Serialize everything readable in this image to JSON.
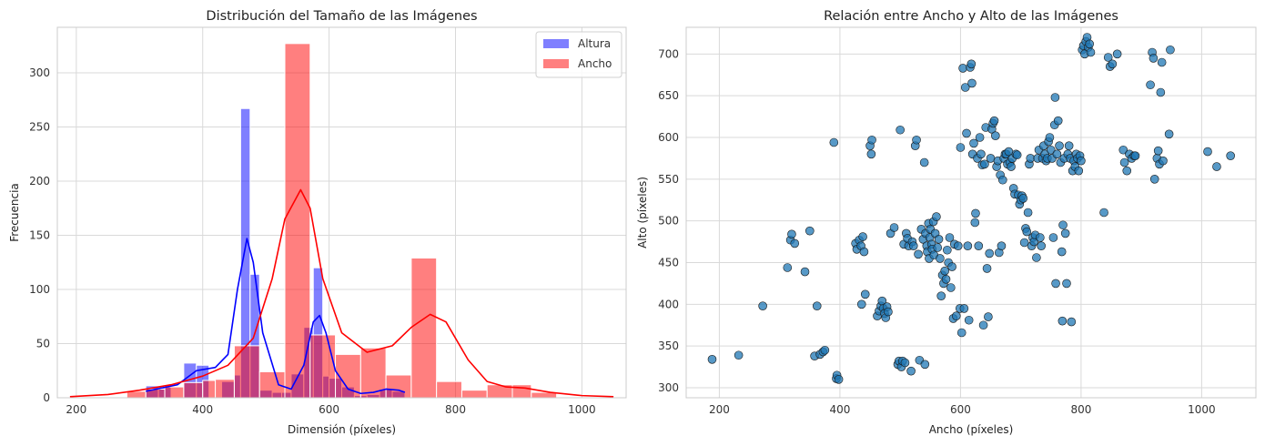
{
  "chart_data": [
    {
      "type": "histogram",
      "title": "Distribución del Tamaño de las Imágenes",
      "xlabel": "Dimensión (píxeles)",
      "ylabel": "Frecuencia",
      "xlim": [
        170,
        1070
      ],
      "ylim": [
        0,
        342
      ],
      "xticks": [
        200,
        400,
        600,
        800,
        1000
      ],
      "yticks": [
        0,
        50,
        100,
        150,
        200,
        250,
        300
      ],
      "grid": true,
      "legend_position": "top-right",
      "series": [
        {
          "name": "Altura",
          "color": "#0000ff",
          "bar_alpha": 0.5,
          "bins": [
            [
              310,
              330,
              11
            ],
            [
              330,
              350,
              10
            ],
            [
              350,
              370,
              0
            ],
            [
              370,
              390,
              32
            ],
            [
              390,
              410,
              30
            ],
            [
              410,
              430,
              0
            ],
            [
              430,
              450,
              15
            ],
            [
              450,
              460,
              21
            ],
            [
              460,
              475,
              267
            ],
            [
              475,
              490,
              114
            ],
            [
              490,
              510,
              7
            ],
            [
              510,
              525,
              5
            ],
            [
              525,
              540,
              5
            ],
            [
              540,
              560,
              22
            ],
            [
              560,
              575,
              65
            ],
            [
              575,
              590,
              120
            ],
            [
              590,
              600,
              20
            ],
            [
              600,
              620,
              18
            ],
            [
              620,
              640,
              10
            ],
            [
              640,
              660,
              2
            ],
            [
              660,
              680,
              3
            ],
            [
              680,
              700,
              8
            ],
            [
              700,
              720,
              6
            ]
          ],
          "kde": [
            [
              310,
              6
            ],
            [
              360,
              12
            ],
            [
              390,
              25
            ],
            [
              420,
              28
            ],
            [
              440,
              40
            ],
            [
              455,
              100
            ],
            [
              470,
              147
            ],
            [
              480,
              125
            ],
            [
              495,
              60
            ],
            [
              520,
              12
            ],
            [
              540,
              8
            ],
            [
              560,
              30
            ],
            [
              575,
              70
            ],
            [
              585,
              76
            ],
            [
              595,
              60
            ],
            [
              610,
              25
            ],
            [
              630,
              8
            ],
            [
              650,
              4
            ],
            [
              670,
              5
            ],
            [
              690,
              8
            ],
            [
              710,
              7
            ],
            [
              720,
              5
            ]
          ]
        },
        {
          "name": "Ancho",
          "color": "#ff0000",
          "bar_alpha": 0.5,
          "bins": [
            [
              280,
              310,
              6
            ],
            [
              310,
              340,
              8
            ],
            [
              340,
              370,
              10
            ],
            [
              370,
              400,
              14
            ],
            [
              400,
              420,
              16
            ],
            [
              420,
              450,
              17
            ],
            [
              450,
              490,
              48
            ],
            [
              490,
              530,
              24
            ],
            [
              530,
              570,
              327
            ],
            [
              570,
              610,
              58
            ],
            [
              610,
              650,
              40
            ],
            [
              650,
              690,
              46
            ],
            [
              690,
              730,
              21
            ],
            [
              730,
              770,
              129
            ],
            [
              770,
              810,
              15
            ],
            [
              810,
              850,
              7
            ],
            [
              850,
              890,
              12
            ],
            [
              890,
              920,
              12
            ],
            [
              920,
              960,
              5
            ]
          ],
          "kde": [
            [
              190,
              1
            ],
            [
              250,
              3
            ],
            [
              300,
              7
            ],
            [
              350,
              12
            ],
            [
              400,
              20
            ],
            [
              440,
              30
            ],
            [
              480,
              55
            ],
            [
              510,
              110
            ],
            [
              530,
              165
            ],
            [
              555,
              192
            ],
            [
              570,
              175
            ],
            [
              590,
              110
            ],
            [
              620,
              60
            ],
            [
              660,
              42
            ],
            [
              700,
              48
            ],
            [
              730,
              65
            ],
            [
              760,
              77
            ],
            [
              785,
              70
            ],
            [
              820,
              35
            ],
            [
              850,
              15
            ],
            [
              880,
              10
            ],
            [
              910,
              9
            ],
            [
              950,
              5
            ],
            [
              1000,
              2
            ],
            [
              1050,
              1
            ]
          ]
        }
      ]
    },
    {
      "type": "scatter",
      "title": "Relación entre Ancho y Alto de las Imágenes",
      "xlabel": "Ancho (píxeles)",
      "ylabel": "Alto (píxeles)",
      "xlim": [
        145,
        1090
      ],
      "ylim": [
        288,
        732
      ],
      "xticks": [
        200,
        400,
        600,
        800,
        1000
      ],
      "yticks": [
        300,
        350,
        400,
        450,
        500,
        550,
        600,
        650,
        700
      ],
      "grid": true,
      "color": "#1f77b4",
      "points": [
        [
          188,
          334
        ],
        [
          232,
          339
        ],
        [
          272,
          398
        ],
        [
          313,
          444
        ],
        [
          318,
          477
        ],
        [
          320,
          484
        ],
        [
          325,
          473
        ],
        [
          342,
          439
        ],
        [
          350,
          488
        ],
        [
          358,
          338
        ],
        [
          362,
          398
        ],
        [
          367,
          340
        ],
        [
          372,
          343
        ],
        [
          375,
          345
        ],
        [
          390,
          594
        ],
        [
          394,
          311
        ],
        [
          395,
          315
        ],
        [
          398,
          310
        ],
        [
          426,
          473
        ],
        [
          428,
          466
        ],
        [
          432,
          477
        ],
        [
          435,
          470
        ],
        [
          436,
          400
        ],
        [
          438,
          481
        ],
        [
          440,
          463
        ],
        [
          442,
          412
        ],
        [
          450,
          590
        ],
        [
          452,
          580
        ],
        [
          453,
          597
        ],
        [
          462,
          386
        ],
        [
          465,
          392
        ],
        [
          468,
          398
        ],
        [
          470,
          404
        ],
        [
          472,
          395
        ],
        [
          474,
          389
        ],
        [
          476,
          384
        ],
        [
          478,
          397
        ],
        [
          480,
          391
        ],
        [
          484,
          485
        ],
        [
          490,
          492
        ],
        [
          496,
          328
        ],
        [
          498,
          332
        ],
        [
          500,
          609
        ],
        [
          502,
          325
        ],
        [
          504,
          332
        ],
        [
          506,
          472
        ],
        [
          508,
          330
        ],
        [
          510,
          485
        ],
        [
          512,
          479
        ],
        [
          514,
          470
        ],
        [
          518,
          320
        ],
        [
          520,
          475
        ],
        [
          522,
          470
        ],
        [
          525,
          590
        ],
        [
          527,
          597
        ],
        [
          530,
          460
        ],
        [
          532,
          333
        ],
        [
          535,
          490
        ],
        [
          538,
          478
        ],
        [
          540,
          570
        ],
        [
          541,
          328
        ],
        [
          542,
          485
        ],
        [
          544,
          470
        ],
        [
          545,
          463
        ],
        [
          547,
          497
        ],
        [
          548,
          455
        ],
        [
          549,
          480
        ],
        [
          550,
          490
        ],
        [
          552,
          472
        ],
        [
          553,
          466
        ],
        [
          555,
          499
        ],
        [
          556,
          459
        ],
        [
          558,
          485
        ],
        [
          560,
          505
        ],
        [
          562,
          468
        ],
        [
          564,
          478
        ],
        [
          566,
          455
        ],
        [
          568,
          410
        ],
        [
          570,
          435
        ],
        [
          572,
          425
        ],
        [
          574,
          440
        ],
        [
          576,
          430
        ],
        [
          578,
          465
        ],
        [
          580,
          450
        ],
        [
          582,
          480
        ],
        [
          584,
          420
        ],
        [
          586,
          445
        ],
        [
          588,
          383
        ],
        [
          590,
          472
        ],
        [
          593,
          386
        ],
        [
          596,
          470
        ],
        [
          599,
          395
        ],
        [
          600,
          588
        ],
        [
          602,
          366
        ],
        [
          604,
          683
        ],
        [
          606,
          395
        ],
        [
          608,
          660
        ],
        [
          610,
          605
        ],
        [
          612,
          470
        ],
        [
          614,
          381
        ],
        [
          616,
          684
        ],
        [
          618,
          688
        ],
        [
          619,
          665
        ],
        [
          620,
          580
        ],
        [
          622,
          593
        ],
        [
          624,
          498
        ],
        [
          625,
          509
        ],
        [
          628,
          575
        ],
        [
          630,
          470
        ],
        [
          632,
          600
        ],
        [
          634,
          580
        ],
        [
          636,
          567
        ],
        [
          638,
          375
        ],
        [
          640,
          568
        ],
        [
          642,
          612
        ],
        [
          644,
          443
        ],
        [
          646,
          385
        ],
        [
          648,
          461
        ],
        [
          650,
          575
        ],
        [
          652,
          610
        ],
        [
          654,
          617
        ],
        [
          656,
          620
        ],
        [
          658,
          602
        ],
        [
          660,
          565
        ],
        [
          662,
          572
        ],
        [
          664,
          462
        ],
        [
          666,
          555
        ],
        [
          668,
          470
        ],
        [
          670,
          549
        ],
        [
          672,
          575
        ],
        [
          674,
          580
        ],
        [
          676,
          580
        ],
        [
          678,
          568
        ],
        [
          680,
          583
        ],
        [
          682,
          570
        ],
        [
          684,
          565
        ],
        [
          686,
          575
        ],
        [
          688,
          539
        ],
        [
          690,
          532
        ],
        [
          692,
          580
        ],
        [
          694,
          579
        ],
        [
          696,
          531
        ],
        [
          698,
          520
        ],
        [
          700,
          525
        ],
        [
          702,
          530
        ],
        [
          704,
          527
        ],
        [
          706,
          474
        ],
        [
          708,
          491
        ],
        [
          710,
          487
        ],
        [
          712,
          510
        ],
        [
          714,
          568
        ],
        [
          716,
          575
        ],
        [
          718,
          470
        ],
        [
          720,
          480
        ],
        [
          722,
          475
        ],
        [
          724,
          483
        ],
        [
          726,
          456
        ],
        [
          728,
          575
        ],
        [
          730,
          585
        ],
        [
          732,
          480
        ],
        [
          734,
          470
        ],
        [
          736,
          575
        ],
        [
          738,
          590
        ],
        [
          740,
          580
        ],
        [
          742,
          572
        ],
        [
          744,
          575
        ],
        [
          746,
          595
        ],
        [
          748,
          600
        ],
        [
          750,
          585
        ],
        [
          752,
          575
        ],
        [
          754,
          480
        ],
        [
          756,
          615
        ],
        [
          757,
          648
        ],
        [
          758,
          425
        ],
        [
          760,
          580
        ],
        [
          762,
          620
        ],
        [
          764,
          590
        ],
        [
          766,
          570
        ],
        [
          768,
          463
        ],
        [
          769,
          380
        ],
        [
          770,
          495
        ],
        [
          772,
          575
        ],
        [
          774,
          485
        ],
        [
          776,
          425
        ],
        [
          778,
          580
        ],
        [
          780,
          590
        ],
        [
          782,
          575
        ],
        [
          784,
          379
        ],
        [
          786,
          560
        ],
        [
          788,
          572
        ],
        [
          790,
          565
        ],
        [
          792,
          580
        ],
        [
          794,
          575
        ],
        [
          796,
          560
        ],
        [
          798,
          578
        ],
        [
          800,
          572
        ],
        [
          802,
          705
        ],
        [
          804,
          710
        ],
        [
          806,
          700
        ],
        [
          808,
          715
        ],
        [
          810,
          720
        ],
        [
          812,
          708
        ],
        [
          814,
          712
        ],
        [
          816,
          702
        ],
        [
          838,
          510
        ],
        [
          845,
          696
        ],
        [
          848,
          685
        ],
        [
          852,
          688
        ],
        [
          860,
          700
        ],
        [
          870,
          585
        ],
        [
          872,
          570
        ],
        [
          876,
          560
        ],
        [
          880,
          580
        ],
        [
          884,
          575
        ],
        [
          888,
          578
        ],
        [
          890,
          578
        ],
        [
          915,
          663
        ],
        [
          918,
          702
        ],
        [
          920,
          695
        ],
        [
          922,
          550
        ],
        [
          926,
          575
        ],
        [
          928,
          584
        ],
        [
          930,
          568
        ],
        [
          932,
          654
        ],
        [
          934,
          690
        ],
        [
          936,
          572
        ],
        [
          946,
          604
        ],
        [
          948,
          705
        ],
        [
          1010,
          583
        ],
        [
          1025,
          565
        ],
        [
          1048,
          578
        ]
      ]
    }
  ]
}
